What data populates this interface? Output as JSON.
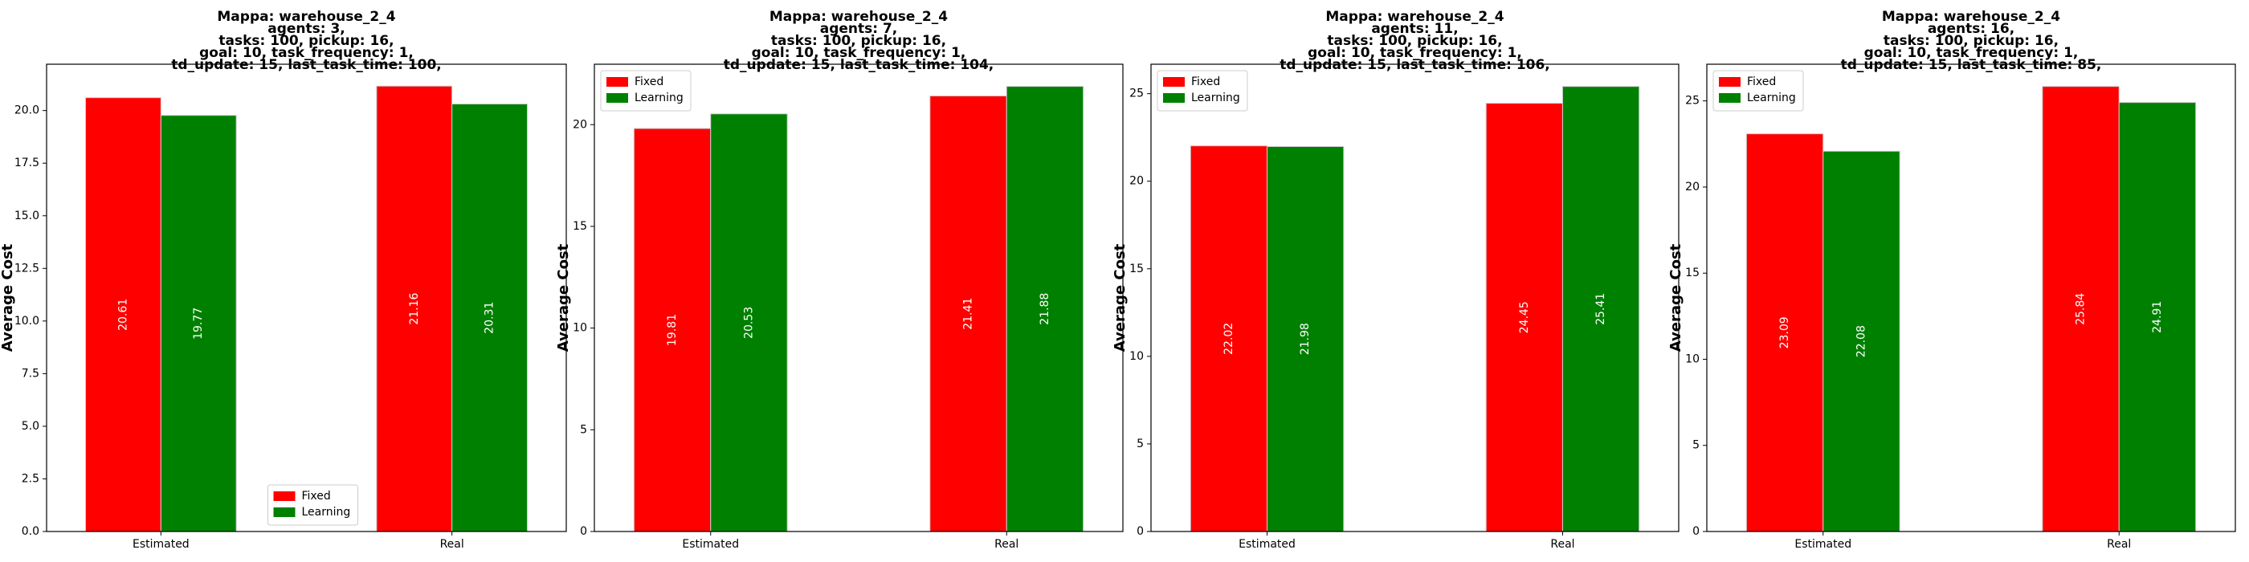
{
  "colors": {
    "Fixed": "#ff0000",
    "Learning": "#008000"
  },
  "chart_data": [
    {
      "type": "bar",
      "title": [
        "Mappa: warehouse_2_4",
        "agents: 3,",
        "tasks: 100, pickup: 16,",
        "goal: 10, task_frequency: 1,",
        "td_update: 15, last_task_time: 100,"
      ],
      "xlabel": "",
      "ylabel": "Average Cost",
      "categories": [
        "Estimated",
        "Real"
      ],
      "series": [
        {
          "name": "Fixed",
          "values": [
            20.61,
            21.16
          ]
        },
        {
          "name": "Learning",
          "values": [
            19.77,
            20.31
          ]
        }
      ],
      "ylim": [
        0,
        22.2
      ],
      "yticks": [
        0.0,
        2.5,
        5.0,
        7.5,
        10.0,
        12.5,
        15.0,
        17.5,
        20.0
      ],
      "ytick_labels": [
        "0.0",
        "2.5",
        "5.0",
        "7.5",
        "10.0",
        "12.5",
        "15.0",
        "17.5",
        "20.0"
      ],
      "legend": "lower-center",
      "grid": false
    },
    {
      "type": "bar",
      "title": [
        "Mappa: warehouse_2_4",
        "agents: 7,",
        "tasks: 100, pickup: 16,",
        "goal: 10, task_frequency: 1,",
        "td_update: 15, last_task_time: 104,"
      ],
      "xlabel": "",
      "ylabel": "Average Cost",
      "categories": [
        "Estimated",
        "Real"
      ],
      "series": [
        {
          "name": "Fixed",
          "values": [
            19.81,
            21.41
          ]
        },
        {
          "name": "Learning",
          "values": [
            20.53,
            21.88
          ]
        }
      ],
      "ylim": [
        0,
        22.97
      ],
      "yticks": [
        0,
        5,
        10,
        15,
        20
      ],
      "ytick_labels": [
        "0",
        "5",
        "10",
        "15",
        "20"
      ],
      "legend": "upper-left",
      "grid": false
    },
    {
      "type": "bar",
      "title": [
        "Mappa: warehouse_2_4",
        "agents: 11,",
        "tasks: 100, pickup: 16,",
        "goal: 10, task_frequency: 1,",
        "td_update: 15, last_task_time: 106,"
      ],
      "xlabel": "",
      "ylabel": "Average Cost",
      "categories": [
        "Estimated",
        "Real"
      ],
      "series": [
        {
          "name": "Fixed",
          "values": [
            22.02,
            24.45
          ]
        },
        {
          "name": "Learning",
          "values": [
            21.98,
            25.41
          ]
        }
      ],
      "ylim": [
        0,
        26.68
      ],
      "yticks": [
        0,
        5,
        10,
        15,
        20,
        25
      ],
      "ytick_labels": [
        "0",
        "5",
        "10",
        "15",
        "20",
        "25"
      ],
      "legend": "upper-left",
      "grid": false
    },
    {
      "type": "bar",
      "title": [
        "Mappa: warehouse_2_4",
        "agents: 16,",
        "tasks: 100, pickup: 16,",
        "goal: 10, task_frequency: 1,",
        "td_update: 15, last_task_time: 85,"
      ],
      "xlabel": "",
      "ylabel": "Average Cost",
      "categories": [
        "Estimated",
        "Real"
      ],
      "series": [
        {
          "name": "Fixed",
          "values": [
            23.09,
            25.84
          ]
        },
        {
          "name": "Learning",
          "values": [
            22.08,
            24.91
          ]
        }
      ],
      "ylim": [
        0,
        27.13
      ],
      "yticks": [
        0,
        5,
        10,
        15,
        20,
        25
      ],
      "ytick_labels": [
        "0",
        "5",
        "10",
        "15",
        "20",
        "25"
      ],
      "legend": "upper-left",
      "grid": false
    }
  ]
}
